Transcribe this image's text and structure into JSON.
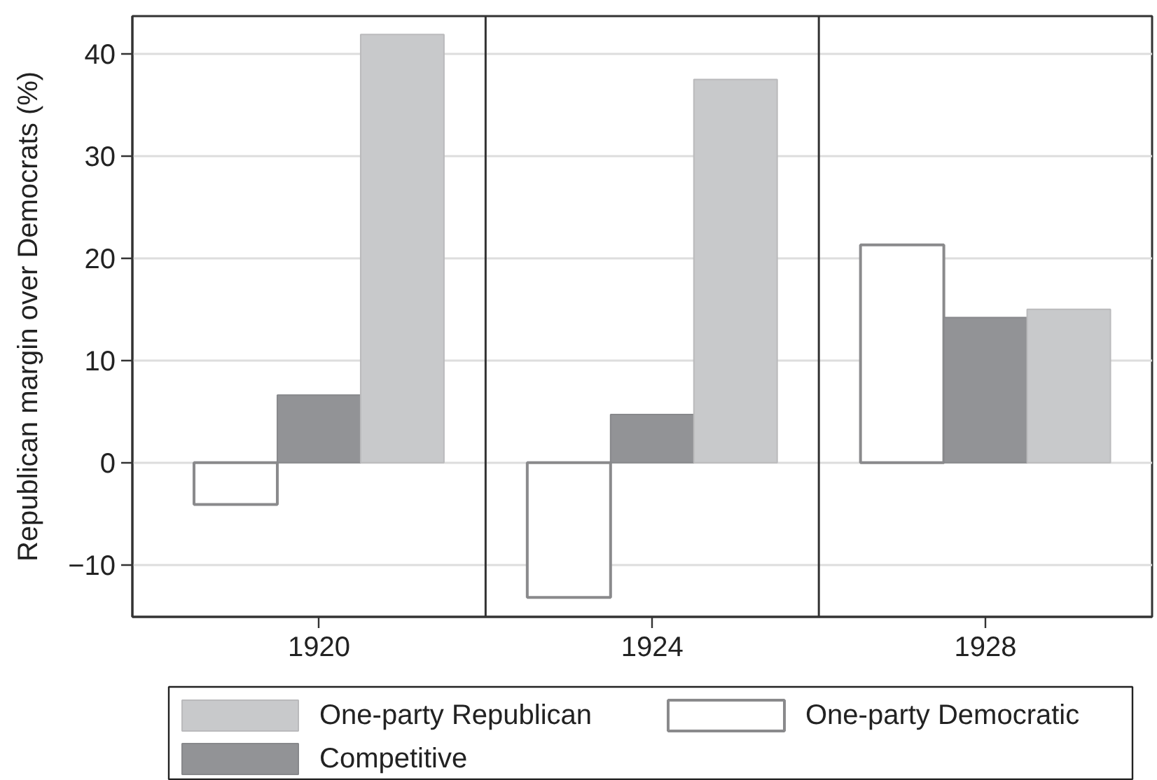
{
  "chart_data": {
    "type": "bar",
    "ylabel": "Republican margin over Democrats (%)",
    "categories": [
      "1920",
      "1924",
      "1928"
    ],
    "series": [
      {
        "name": "One-party Democratic",
        "color": "#ffffff",
        "values": [
          -4.1,
          -13.2,
          21.3
        ]
      },
      {
        "name": "Competitive",
        "color": "#929396",
        "values": [
          6.6,
          4.7,
          14.2
        ]
      },
      {
        "name": "One-party Republican",
        "color": "#c8c9cb",
        "values": [
          41.9,
          37.5,
          15.0
        ]
      }
    ],
    "ylim": [
      -15.1,
      43.7
    ],
    "yticks": [
      {
        "value": -10,
        "label": "−10"
      },
      0,
      10,
      20,
      30,
      40
    ],
    "grid": "y",
    "legend": "bottom"
  }
}
